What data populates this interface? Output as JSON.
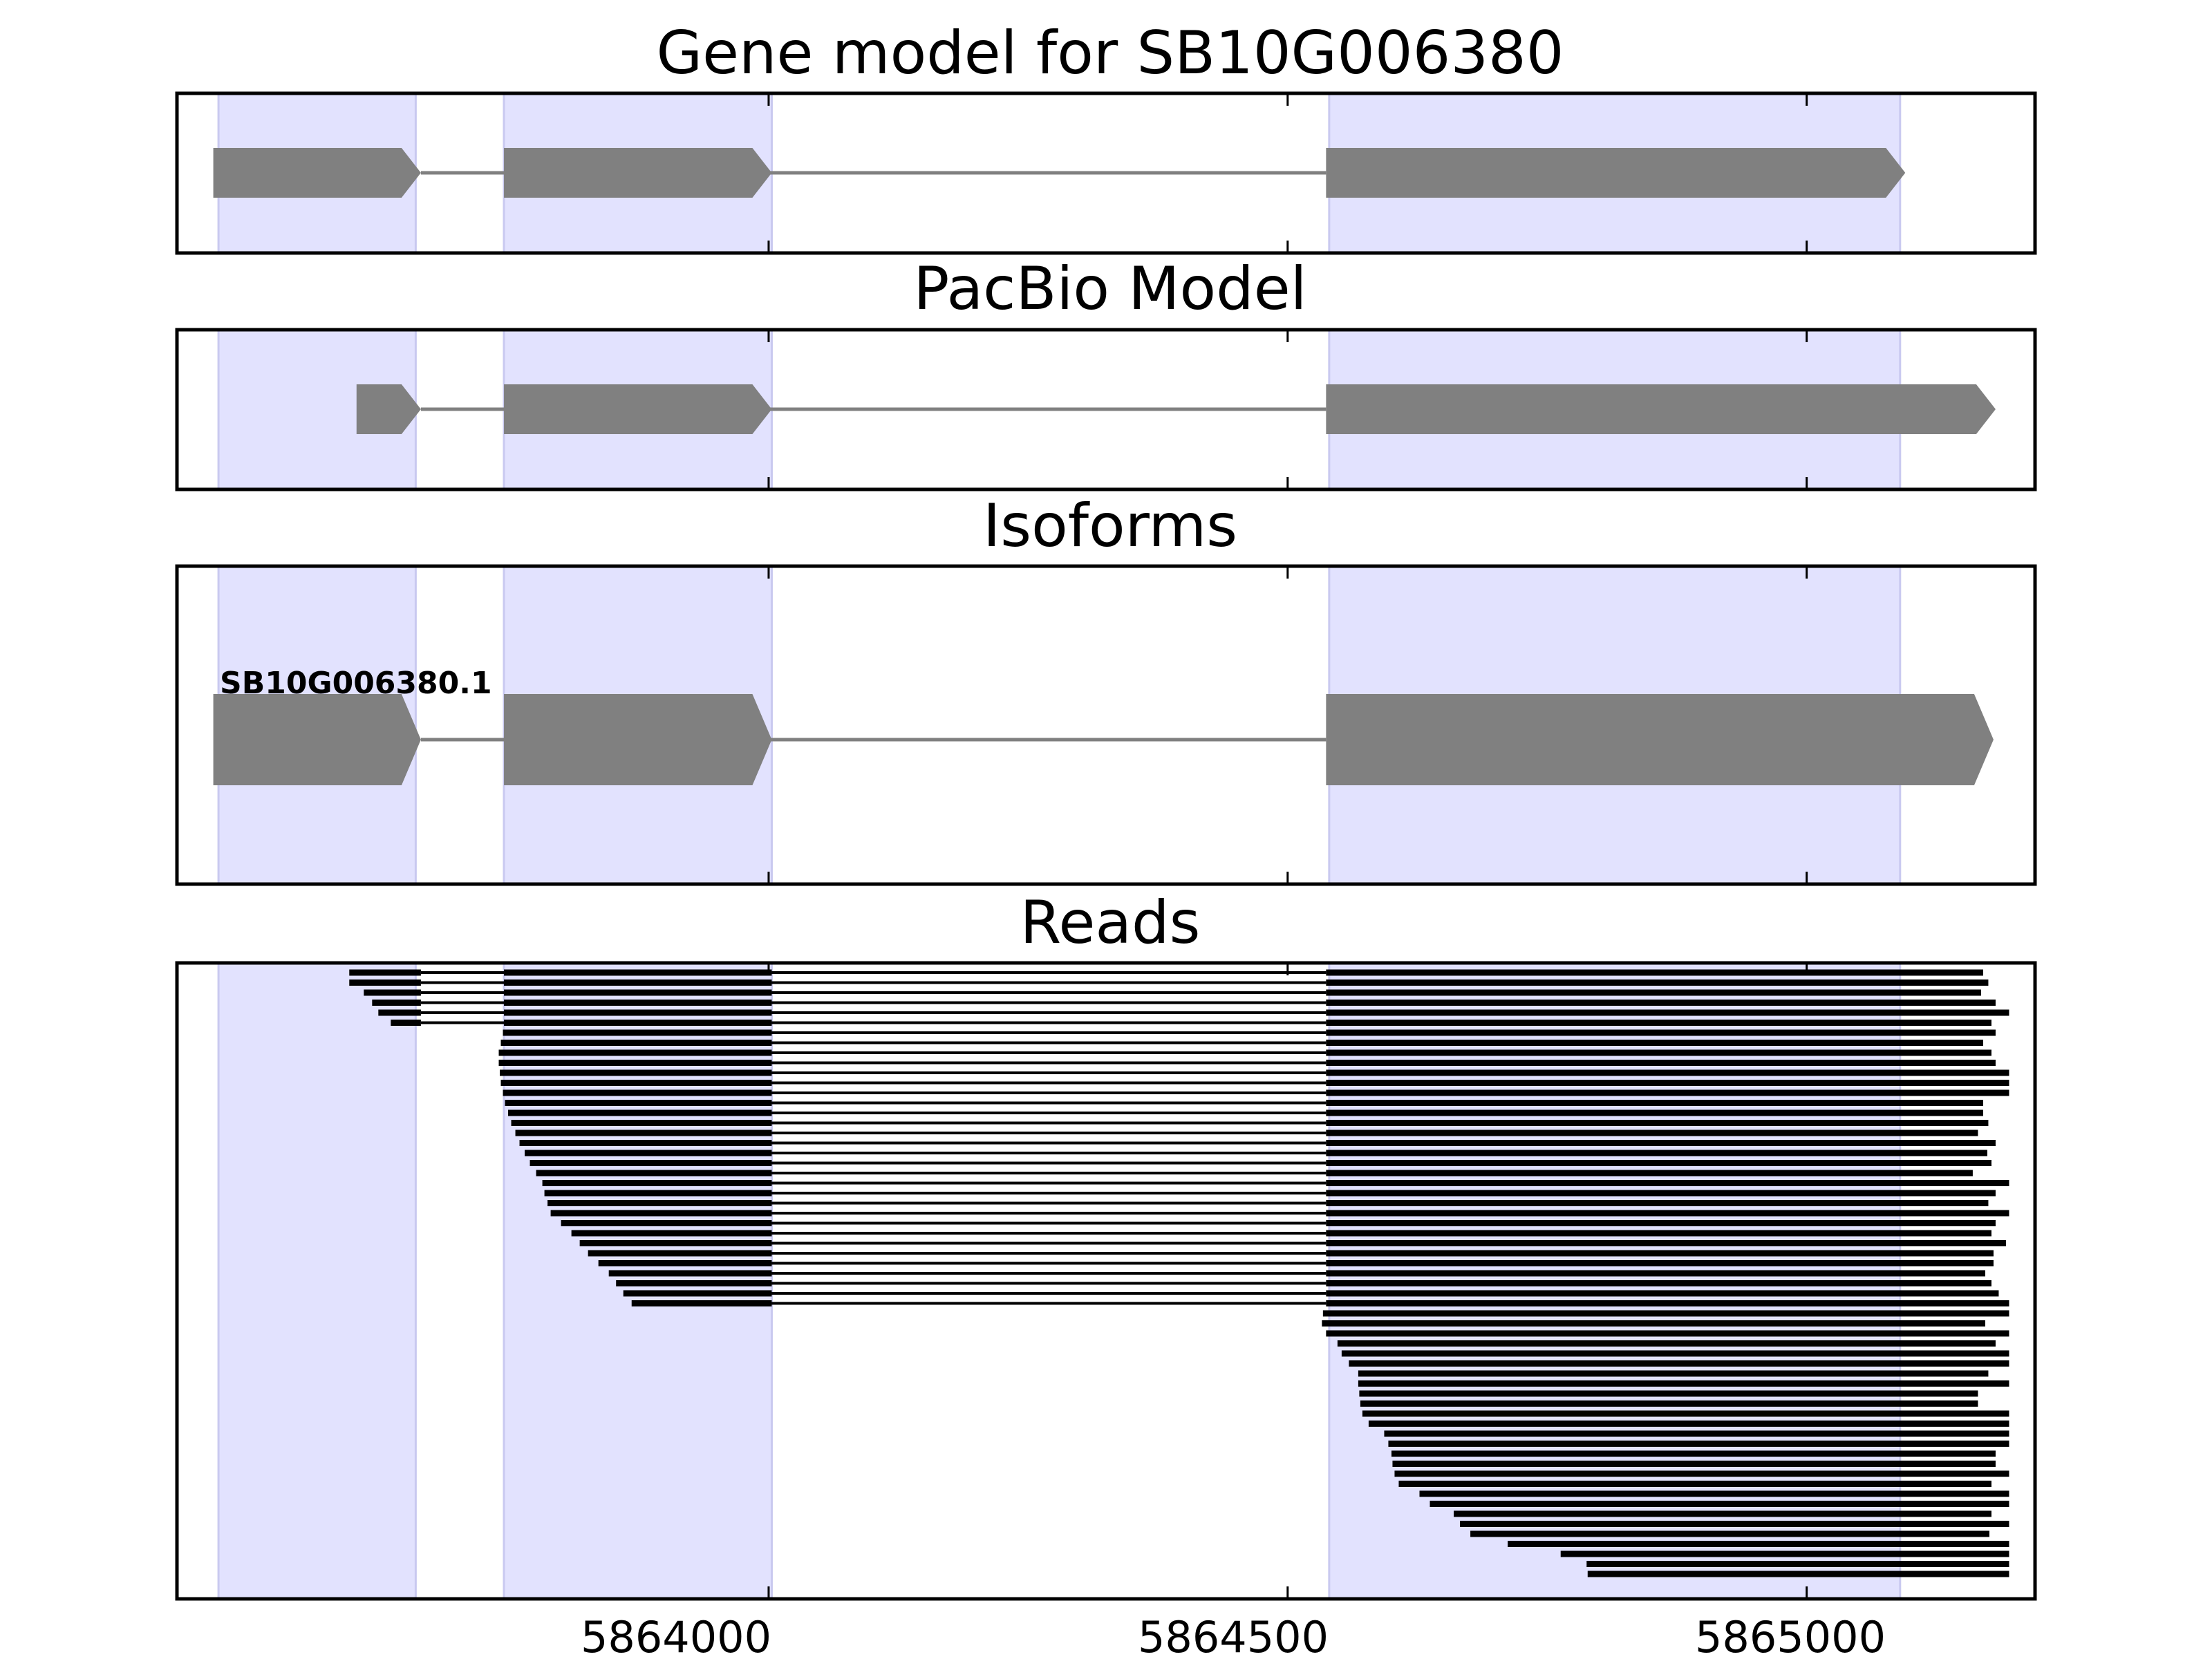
{
  "figure": {
    "panels": [
      {
        "id": "gene",
        "title": "Gene model for SB10G006380"
      },
      {
        "id": "pacbio",
        "title": "PacBio Model"
      },
      {
        "id": "isoforms",
        "title": "Isoforms"
      },
      {
        "id": "reads",
        "title": "Reads"
      }
    ],
    "isoform_label": "SB10G006380.1",
    "x_ticks": [
      "5864000",
      "5864500",
      "5865000"
    ]
  },
  "colors": {
    "exon": "#808080",
    "intron": "#808080",
    "shade": "#e2e2fe",
    "reads": "#000000"
  },
  "chart_data": {
    "type": "gene-track",
    "x_range": [
      5863430,
      5865220
    ],
    "x_ticks": [
      5864000,
      5864500,
      5865000
    ],
    "shaded_regions": [
      [
        5863470,
        5863660
      ],
      [
        5863745,
        5864003
      ],
      [
        5864540,
        5865090
      ]
    ],
    "gene_model": {
      "name": "SB10G006380",
      "strand": "+",
      "exons": [
        [
          5863465,
          5863665
        ],
        [
          5863745,
          5864003
        ],
        [
          5864537,
          5865095
        ]
      ]
    },
    "pacbio_model": {
      "strand": "+",
      "exons": [
        [
          5863603,
          5863665
        ],
        [
          5863745,
          5864003
        ],
        [
          5864537,
          5865182
        ]
      ]
    },
    "isoforms": [
      {
        "name": "SB10G006380.1",
        "strand": "+",
        "exons": [
          [
            5863465,
            5863665
          ],
          [
            5863745,
            5864003
          ],
          [
            5864537,
            5865180
          ]
        ]
      }
    ],
    "reads": [
      {
        "start": 5863596,
        "first_exon_end": 5863665,
        "ends": 5865170,
        "spliced": true
      },
      {
        "start": 5863596,
        "first_exon_end": 5863665,
        "ends": 5865175,
        "spliced": true
      },
      {
        "start": 5863610,
        "first_exon_end": 5863665,
        "ends": 5865168,
        "spliced": true
      },
      {
        "start": 5863618,
        "first_exon_end": 5863665,
        "ends": 5865182,
        "spliced": true
      },
      {
        "start": 5863624,
        "first_exon_end": 5863665,
        "ends": 5865195,
        "spliced": true
      },
      {
        "start": 5863636,
        "first_exon_end": 5863665,
        "ends": 5865178,
        "spliced": true
      },
      {
        "start": 5863744,
        "ends": 5865182,
        "spliced": true
      },
      {
        "start": 5863742,
        "ends": 5865170,
        "spliced": true
      },
      {
        "start": 5863740,
        "ends": 5865178,
        "spliced": true
      },
      {
        "start": 5863740,
        "ends": 5865182,
        "spliced": true
      },
      {
        "start": 5863741,
        "ends": 5865195,
        "spliced": true
      },
      {
        "start": 5863742,
        "ends": 5865195,
        "spliced": true
      },
      {
        "start": 5863744,
        "ends": 5865195,
        "spliced": true
      },
      {
        "start": 5863746,
        "ends": 5865170,
        "spliced": true
      },
      {
        "start": 5863749,
        "ends": 5865170,
        "spliced": true
      },
      {
        "start": 5863752,
        "ends": 5865175,
        "spliced": true
      },
      {
        "start": 5863756,
        "ends": 5865165,
        "spliced": true
      },
      {
        "start": 5863760,
        "ends": 5865182,
        "spliced": true
      },
      {
        "start": 5863765,
        "ends": 5865174,
        "spliced": true
      },
      {
        "start": 5863770,
        "ends": 5865178,
        "spliced": true
      },
      {
        "start": 5863776,
        "ends": 5865160,
        "spliced": true
      },
      {
        "start": 5863782,
        "ends": 5865195,
        "spliced": true
      },
      {
        "start": 5863784,
        "ends": 5865182,
        "spliced": true
      },
      {
        "start": 5863787,
        "ends": 5865175,
        "spliced": true
      },
      {
        "start": 5863790,
        "ends": 5865195,
        "spliced": true
      },
      {
        "start": 5863800,
        "ends": 5865182,
        "spliced": true
      },
      {
        "start": 5863810,
        "ends": 5865178,
        "spliced": true
      },
      {
        "start": 5863818,
        "ends": 5865192,
        "spliced": true
      },
      {
        "start": 5863826,
        "ends": 5865180,
        "spliced": true
      },
      {
        "start": 5863836,
        "ends": 5865180,
        "spliced": true
      },
      {
        "start": 5863846,
        "ends": 5865172,
        "spliced": true
      },
      {
        "start": 5863853,
        "ends": 5865178,
        "spliced": true
      },
      {
        "start": 5863860,
        "ends": 5865185,
        "spliced": true
      },
      {
        "start": 5863868,
        "ends": 5865195,
        "spliced": true
      },
      {
        "start": 5864534,
        "ends": 5865195,
        "spliced": false
      },
      {
        "start": 5864533,
        "ends": 5865172,
        "spliced": false
      },
      {
        "start": 5864537,
        "ends": 5865195,
        "spliced": false
      },
      {
        "start": 5864548,
        "ends": 5865182,
        "spliced": false
      },
      {
        "start": 5864552,
        "ends": 5865195,
        "spliced": false
      },
      {
        "start": 5864559,
        "ends": 5865195,
        "spliced": false
      },
      {
        "start": 5864568,
        "ends": 5865175,
        "spliced": false
      },
      {
        "start": 5864568,
        "ends": 5865195,
        "spliced": false
      },
      {
        "start": 5864569,
        "ends": 5865165,
        "spliced": false
      },
      {
        "start": 5864570,
        "ends": 5865165,
        "spliced": false
      },
      {
        "start": 5864572,
        "ends": 5865195,
        "spliced": false
      },
      {
        "start": 5864578,
        "ends": 5865195,
        "spliced": false
      },
      {
        "start": 5864593,
        "ends": 5865195,
        "spliced": false
      },
      {
        "start": 5864597,
        "ends": 5865195,
        "spliced": false
      },
      {
        "start": 5864600,
        "ends": 5865182,
        "spliced": false
      },
      {
        "start": 5864601,
        "ends": 5865182,
        "spliced": false
      },
      {
        "start": 5864603,
        "ends": 5865195,
        "spliced": false
      },
      {
        "start": 5864607,
        "ends": 5865178,
        "spliced": false
      },
      {
        "start": 5864627,
        "ends": 5865195,
        "spliced": false
      },
      {
        "start": 5864637,
        "ends": 5865195,
        "spliced": false
      },
      {
        "start": 5864660,
        "ends": 5865178,
        "spliced": false
      },
      {
        "start": 5864666,
        "ends": 5865195,
        "spliced": false
      },
      {
        "start": 5864676,
        "ends": 5865176,
        "spliced": false
      },
      {
        "start": 5864712,
        "ends": 5865195,
        "spliced": false
      },
      {
        "start": 5864763,
        "ends": 5865195,
        "spliced": false
      },
      {
        "start": 5864788,
        "ends": 5865195,
        "spliced": false
      },
      {
        "start": 5864789,
        "ends": 5865195,
        "spliced": false
      }
    ]
  }
}
